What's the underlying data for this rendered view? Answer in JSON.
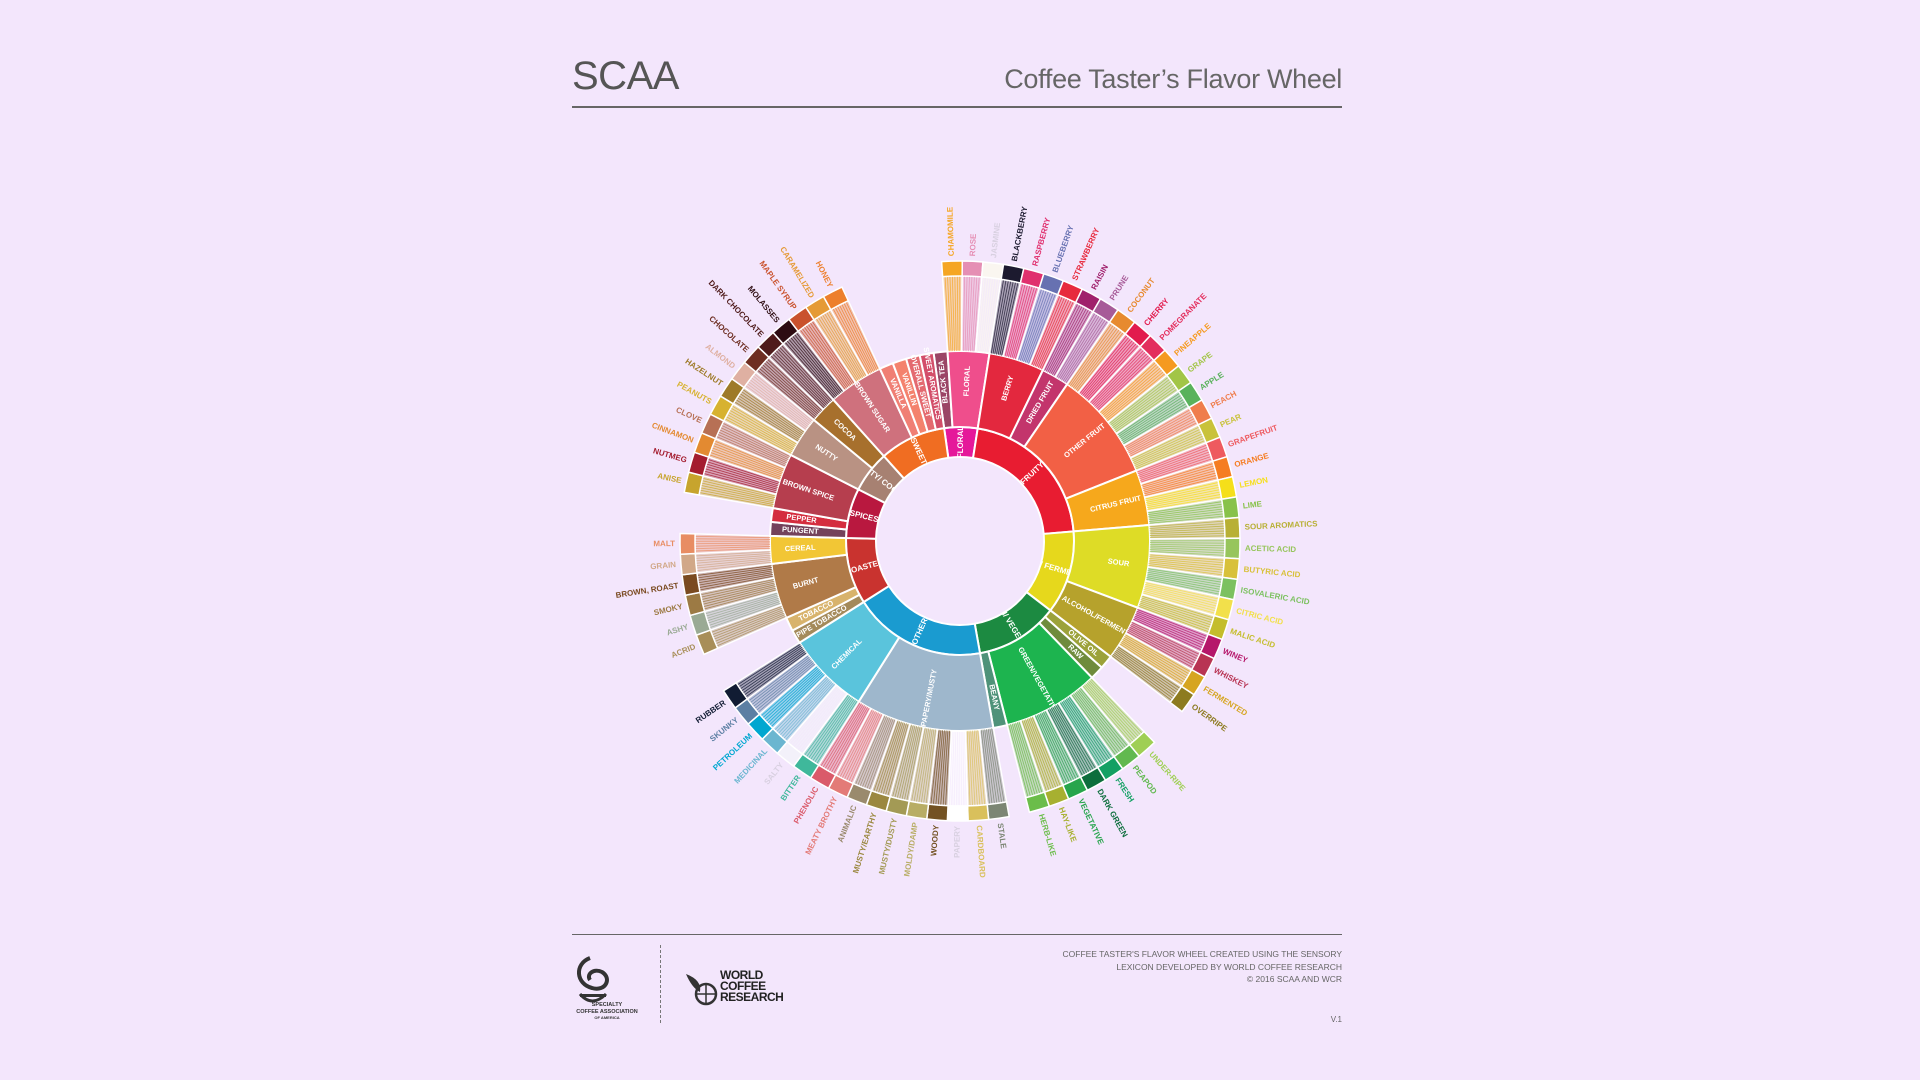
{
  "header": {
    "left_title": "SCAA",
    "right_title": "Coffee Taster’s Flavor Wheel"
  },
  "footer": {
    "note_lines": [
      "COFFEE TASTER'S FLAVOR WHEEL CREATED USING THE SENSORY",
      "LEXICON DEVELOPED BY WORLD COFFEE RESEARCH",
      "© 2016 SCAA AND WCR"
    ],
    "version": "V.1",
    "scaa_logo_text": [
      "SPECIALTY",
      "COFFEE ASSOCIATION",
      "OF AMERICA"
    ],
    "wcr_logo_text": [
      "WORLD",
      "COFFEE",
      "RESEARCH"
    ]
  },
  "wheel": {
    "categories": [
      {
        "name": "FLORAL",
        "color": "#e5189a",
        "children": [
          {
            "name": "BLACK TEA",
            "color": "#9b4566",
            "leaves": []
          },
          {
            "name": "FLORAL",
            "color": "#ef4e8c",
            "leaves": [
              {
                "name": "CHAMOMILE",
                "color": "#f5a623"
              },
              {
                "name": "ROSE",
                "color": "#e58fb4"
              },
              {
                "name": "JASMINE",
                "color": "#faf6f0"
              }
            ]
          }
        ]
      },
      {
        "name": "FRUITY",
        "color": "#e81c31",
        "children": [
          {
            "name": "BERRY",
            "color": "#e3283e",
            "leaves": [
              {
                "name": "BLACKBERRY",
                "color": "#1c1a2f"
              },
              {
                "name": "RASPBERRY",
                "color": "#e0306e"
              },
              {
                "name": "BLUEBERRY",
                "color": "#6771b1"
              },
              {
                "name": "STRAWBERRY",
                "color": "#e72a3d"
              }
            ]
          },
          {
            "name": "DRIED FRUIT",
            "color": "#c3356c",
            "leaves": [
              {
                "name": "RAISIN",
                "color": "#a0216c"
              },
              {
                "name": "PRUNE",
                "color": "#a75b98"
              }
            ]
          },
          {
            "name": "OTHER FRUIT",
            "color": "#f26045",
            "leaves": [
              {
                "name": "COCONUT",
                "color": "#e78a2f"
              },
              {
                "name": "CHERRY",
                "color": "#e21b4d"
              },
              {
                "name": "POMEGRANATE",
                "color": "#e32e5d"
              },
              {
                "name": "PINEAPPLE",
                "color": "#f59a1f"
              },
              {
                "name": "GRAPE",
                "color": "#a2c547"
              },
              {
                "name": "APPLE",
                "color": "#59b25b"
              },
              {
                "name": "PEACH",
                "color": "#ef7d4c"
              },
              {
                "name": "PEAR",
                "color": "#c9c23a"
              }
            ]
          },
          {
            "name": "CITRUS FRUIT",
            "color": "#f6a81c",
            "leaves": [
              {
                "name": "GRAPEFRUIT",
                "color": "#ee5a5f"
              },
              {
                "name": "ORANGE",
                "color": "#f57d22"
              },
              {
                "name": "LEMON",
                "color": "#f5df1a"
              },
              {
                "name": "LIME",
                "color": "#88c24a"
              }
            ]
          }
        ]
      },
      {
        "name": "SOUR/ FERMENTED",
        "color": "#e6d81c",
        "children": [
          {
            "name": "SOUR",
            "color": "#dedc26",
            "leaves": [
              {
                "name": "SOUR AROMATICS",
                "color": "#b8b035"
              },
              {
                "name": "ACETIC ACID",
                "color": "#97c55c"
              },
              {
                "name": "BUTYRIC ACID",
                "color": "#d8c13a"
              },
              {
                "name": "ISOVALERIC ACID",
                "color": "#7cc160"
              },
              {
                "name": "CITRIC ACID",
                "color": "#f2e04b"
              },
              {
                "name": "MALIC ACID",
                "color": "#c4bd2c"
              }
            ]
          },
          {
            "name": "ALCOHOL/FERMENTED",
            "color": "#b6a22c",
            "leaves": [
              {
                "name": "WINEY",
                "color": "#b5176a"
              },
              {
                "name": "WHISKEY",
                "color": "#b83453"
              },
              {
                "name": "FERMENTED",
                "color": "#d6a520"
              },
              {
                "name": "OVERRIPE",
                "color": "#8d7b20"
              }
            ]
          }
        ]
      },
      {
        "name": "GREEN/ VEGETATIVE",
        "color": "#1c8a41",
        "children": [
          {
            "name": "OLIVE OIL",
            "color": "#9ca23a",
            "leaves": []
          },
          {
            "name": "RAW",
            "color": "#6f8b3c",
            "leaves": []
          },
          {
            "name": "GREEN/VEGETATIVE",
            "color": "#1db44f",
            "leaves": [
              {
                "name": "UNDER-RIPE",
                "color": "#9fcf54"
              },
              {
                "name": "PEAPOD",
                "color": "#61b94f"
              },
              {
                "name": "FRESH",
                "color": "#13a063"
              },
              {
                "name": "DARK GREEN",
                "color": "#0d6e3d"
              },
              {
                "name": "VEGETATIVE",
                "color": "#27a54c"
              },
              {
                "name": "HAY-LIKE",
                "color": "#a7b030"
              },
              {
                "name": "HERB-LIKE",
                "color": "#6bbd4a"
              }
            ]
          },
          {
            "name": "BEANY",
            "color": "#4f9279",
            "leaves": []
          }
        ]
      },
      {
        "name": "OTHER",
        "color": "#1a9bd0",
        "children": [
          {
            "name": "PAPERY/MUSTY",
            "color": "#9eb7cc",
            "leaves": [
              {
                "name": "STALE",
                "color": "#7c8674"
              },
              {
                "name": "CARDBOARD",
                "color": "#d9c05c"
              },
              {
                "name": "PAPERY",
                "color": "#ffffff"
              },
              {
                "name": "WOODY",
                "color": "#735223"
              },
              {
                "name": "MOLDY/DAMP",
                "color": "#b8ad65"
              },
              {
                "name": "MUSTY/DUSTY",
                "color": "#a39a55"
              },
              {
                "name": "MUSTY/EARTHY",
                "color": "#9b8840"
              },
              {
                "name": "ANIMALIC",
                "color": "#9a8a6d"
              },
              {
                "name": "MEATY BROTHY",
                "color": "#e37b77"
              },
              {
                "name": "PHENOLIC",
                "color": "#da5a6a"
              }
            ]
          },
          {
            "name": "CHEMICAL",
            "color": "#5ac4dc",
            "leaves": [
              {
                "name": "BITTER",
                "color": "#3fb89b"
              },
              {
                "name": "SALTY",
                "color": "#f3f1fa"
              },
              {
                "name": "MEDICINAL",
                "color": "#6bb6d0"
              },
              {
                "name": "PETROLEUM",
                "color": "#00a7d0"
              },
              {
                "name": "SKUNKY",
                "color": "#5c7fa3"
              },
              {
                "name": "RUBBER",
                "color": "#111c33"
              }
            ]
          }
        ]
      },
      {
        "name": "ROASTED",
        "color": "#c9332f",
        "children": [
          {
            "name": "PIPE TOBACCO",
            "color": "#a48a5a",
            "leaves": []
          },
          {
            "name": "TOBACCO",
            "color": "#d8b36c",
            "leaves": []
          },
          {
            "name": "BURNT",
            "color": "#b07a48",
            "leaves": [
              {
                "name": "ACRID",
                "color": "#a88e58"
              },
              {
                "name": "ASHY",
                "color": "#9aaa94"
              },
              {
                "name": "SMOKY",
                "color": "#9c7a44"
              },
              {
                "name": "BROWN, ROAST",
                "color": "#7a4a20"
              }
            ]
          },
          {
            "name": "CEREAL",
            "color": "#f2c635",
            "leaves": [
              {
                "name": "GRAIN",
                "color": "#d1a888"
              },
              {
                "name": "MALT",
                "color": "#e88d63"
              }
            ]
          }
        ]
      },
      {
        "name": "SPICES",
        "color": "#b9183f",
        "children": [
          {
            "name": "PUNGENT",
            "color": "#74425b",
            "leaves": []
          },
          {
            "name": "PEPPER",
            "color": "#d42d3e",
            "leaves": []
          },
          {
            "name": "BROWN SPICE",
            "color": "#b63e4e",
            "leaves": [
              {
                "name": "ANISE",
                "color": "#c7a42d"
              },
              {
                "name": "NUTMEG",
                "color": "#a41d2f"
              },
              {
                "name": "CINNAMON",
                "color": "#e38a31"
              },
              {
                "name": "CLOVE",
                "color": "#b77055"
              }
            ]
          }
        ]
      },
      {
        "name": "NUTTY/ COCOA",
        "color": "#a78172",
        "children": [
          {
            "name": "NUTTY",
            "color": "#b99283",
            "leaves": [
              {
                "name": "PEANUTS",
                "color": "#d7b230"
              },
              {
                "name": "HAZELNUT",
                "color": "#9e7a28"
              },
              {
                "name": "ALMOND",
                "color": "#dfb0a2"
              }
            ]
          },
          {
            "name": "COCOA",
            "color": "#a7702d",
            "leaves": [
              {
                "name": "CHOCOLATE",
                "color": "#6e2e22"
              },
              {
                "name": "DARK CHOCOLATE",
                "color": "#4f1b1b"
              }
            ]
          }
        ]
      },
      {
        "name": "SWEET",
        "color": "#f06d22",
        "children": [
          {
            "name": "BROWN SUGAR",
            "color": "#cf717d",
            "leaves": [
              {
                "name": "MOLASSES",
                "color": "#2d0c12"
              },
              {
                "name": "MAPLE SYRUP",
                "color": "#c9522d"
              },
              {
                "name": "CARAMELIZED",
                "color": "#e59a36"
              },
              {
                "name": "HONEY",
                "color": "#ed7f2c"
              }
            ]
          },
          {
            "name": "VANILLA",
            "color": "#f07f74",
            "leaves": []
          },
          {
            "name": "VANILLIN",
            "color": "#f4826d",
            "leaves": []
          },
          {
            "name": "OVERALL SWEET",
            "color": "#e46a70",
            "leaves": []
          },
          {
            "name": "SWEET AROMATICS",
            "color": "#d34e6a",
            "leaves": []
          }
        ]
      }
    ]
  }
}
